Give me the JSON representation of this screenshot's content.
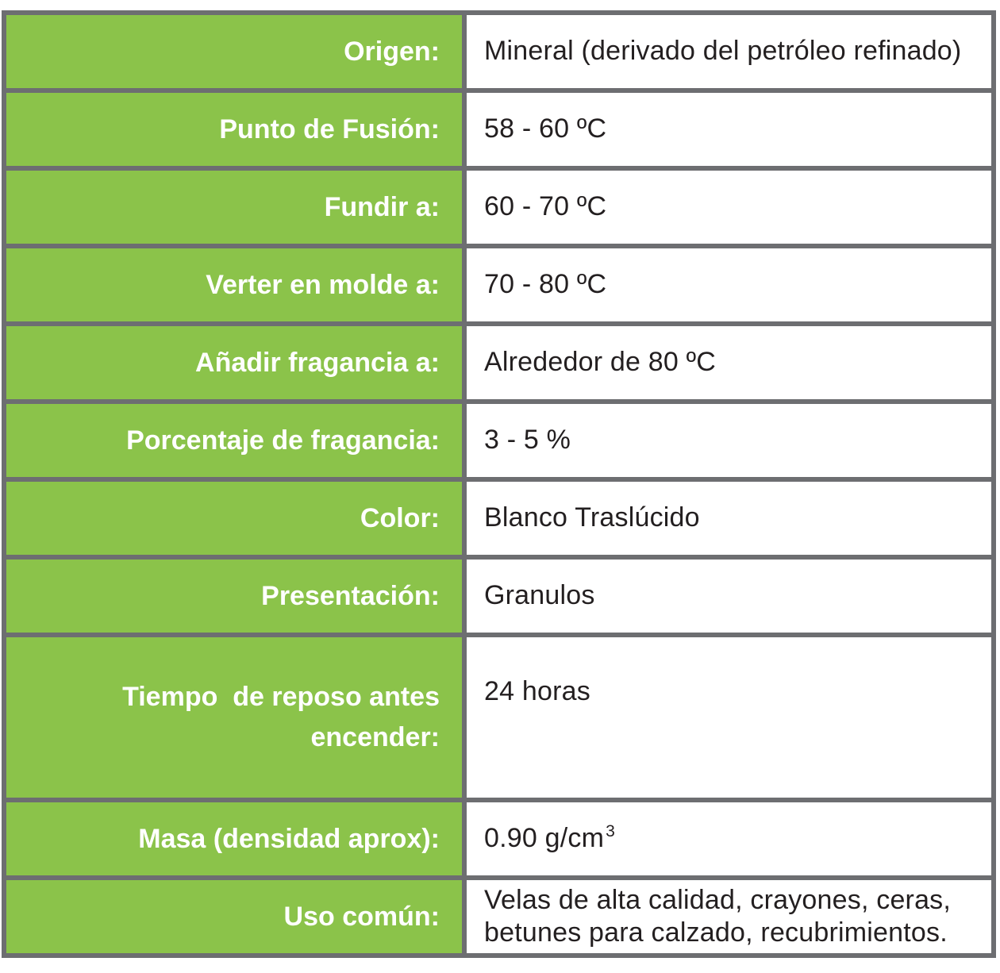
{
  "table": {
    "colors": {
      "label_bg": "#8BC34A",
      "border": "#6D6E71",
      "label_text": "#FFFFFF",
      "value_bg": "#FFFFFF",
      "value_text": "#231F20"
    },
    "rows": [
      {
        "label": "Origen:",
        "value": "Mineral (derivado del petróleo refinado)"
      },
      {
        "label": "Punto de Fusión:",
        "value": "58 - 60 ºC"
      },
      {
        "label": "Fundir a:",
        "value": "60 - 70 ºC"
      },
      {
        "label": "Verter en molde a:",
        "value": "70 - 80 ºC"
      },
      {
        "label": "Añadir fragancia a:",
        "value": "Alrededor de 80 ºC"
      },
      {
        "label": "Porcentaje de fragancia:",
        "value": "3 - 5 %"
      },
      {
        "label": "Color:",
        "value": "Blanco Traslúcido"
      },
      {
        "label": "Presentación:",
        "value": "Granulos"
      },
      {
        "label": "Tiempo  de reposo antes\nencender:",
        "value": "24 horas"
      },
      {
        "label": "Masa (densidad aprox):",
        "value": "0.90 g/cm",
        "value_sup": "3"
      },
      {
        "label": "Uso común:",
        "value": "Velas de alta calidad, crayones, ceras,\nbetunes para calzado, recubrimientos."
      }
    ]
  }
}
